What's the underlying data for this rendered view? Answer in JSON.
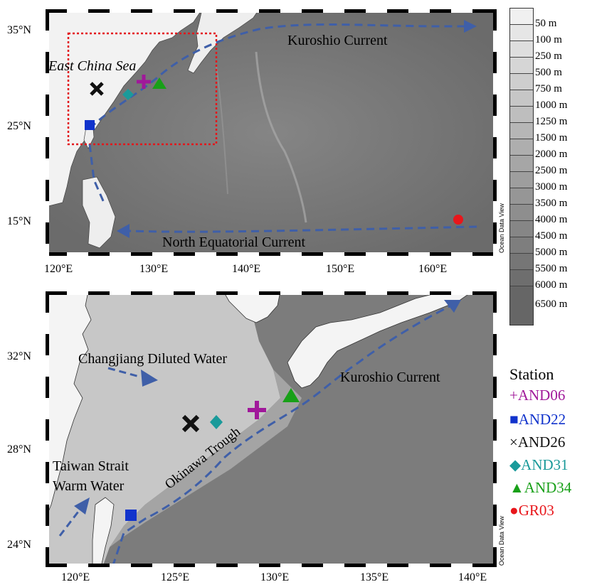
{
  "top_map": {
    "lat_ticks": [
      "35°N",
      "25°N",
      "15°N"
    ],
    "lon_ticks": [
      "120°E",
      "130°E",
      "140°E",
      "150°E",
      "160°E"
    ],
    "labels": {
      "kuroshio": "Kuroshio Current",
      "ecs": "East China Sea",
      "nec": "North Equatorial Current"
    },
    "credit": "Ocean Data View"
  },
  "bottom_map": {
    "lat_ticks": [
      "32°N",
      "28°N",
      "24°N"
    ],
    "lon_ticks": [
      "120°E",
      "125°E",
      "130°E",
      "135°E",
      "140°E"
    ],
    "labels": {
      "cdw": "Changjiang Diluted Water",
      "kuroshio": "Kuroshio Current",
      "trough": "Okinawa Trough",
      "tsww_1": "Taiwan Strait",
      "tsww_2": "Warm Water"
    },
    "credit": "Ocean Data View"
  },
  "depth_legend": {
    "entries": [
      "50 m",
      "100 m",
      "250 m",
      "500 m",
      "750 m",
      "1000 m",
      "1250 m",
      "1500 m",
      "2000 m",
      "2500 m",
      "3000 m",
      "3500 m",
      "4000 m",
      "4500 m",
      "5000 m",
      "5500 m",
      "6000 m",
      "6500 m"
    ]
  },
  "stations": {
    "title": "Station",
    "items": [
      {
        "name": "AND06",
        "symbol": "+",
        "color": "#a0189a"
      },
      {
        "name": "AND22",
        "symbol": "■",
        "color": "#1133cc"
      },
      {
        "name": "AND26",
        "symbol": "×",
        "color": "#111111"
      },
      {
        "name": "AND31",
        "symbol": "◆",
        "color": "#1a9a9a"
      },
      {
        "name": "AND34",
        "symbol": "▲",
        "color": "#18a018"
      },
      {
        "name": "GR03",
        "symbol": "●",
        "color": "#e8161b"
      }
    ]
  },
  "colors": {
    "current_arrow": "#3f5fa8",
    "study_box": "#e3161b"
  }
}
